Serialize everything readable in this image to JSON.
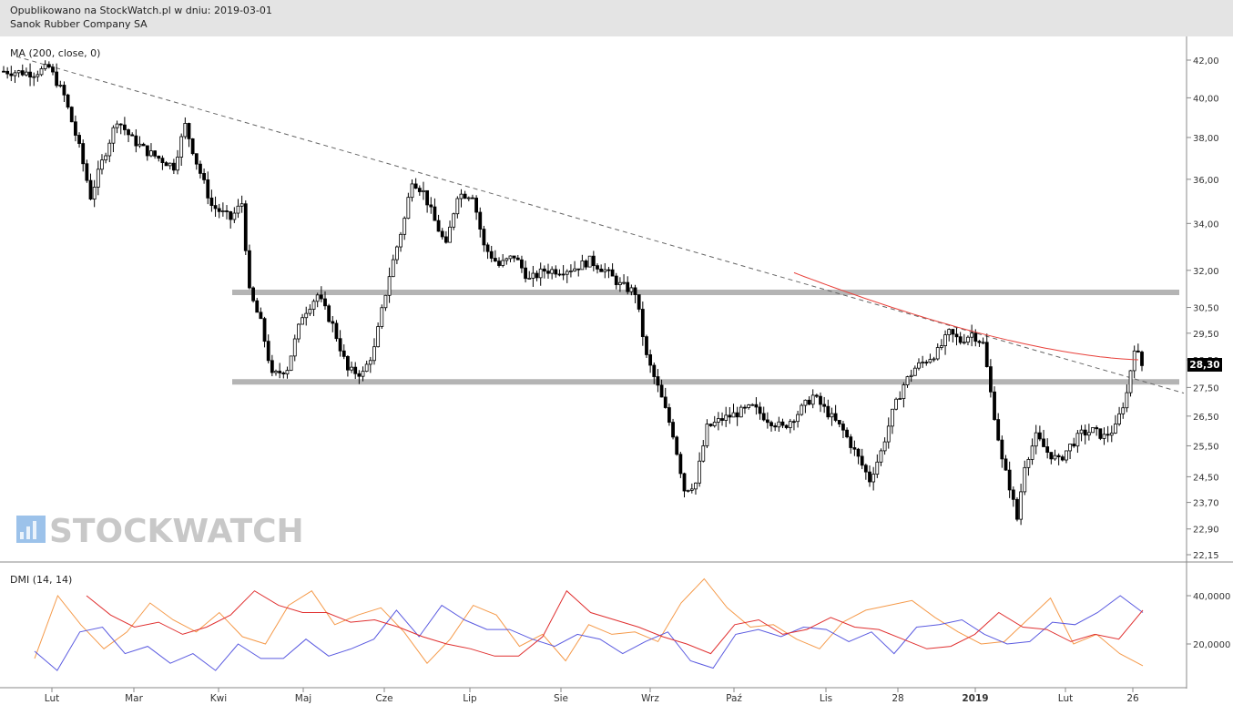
{
  "header": {
    "line1": "Opublikowano na StockWatch.pl w dniu: 2019-03-01",
    "line2": "Sanok Rubber Company SA"
  },
  "watermark": "STOCKWATCH",
  "colors": {
    "candle": "#000000",
    "ma": "#e8403a",
    "support": "#b4b4b4",
    "trend": "#666666",
    "plus_di": "#f59a4a",
    "minus_di": "#5a5ae0",
    "adx": "#e03030",
    "price_tag_bg": "#000000"
  },
  "chart_data": [
    {
      "type": "candlestick",
      "title": "",
      "indicator_label": "MA (200, close, 0)",
      "scale": "log",
      "ylim": [
        21.8,
        43.2
      ],
      "y_ticks": [
        "42,00",
        "40,00",
        "38,00",
        "36,00",
        "34,00",
        "32,00",
        "30,50",
        "29,50",
        "28,50",
        "27,50",
        "26,50",
        "25,50",
        "24,50",
        "23,70",
        "22,90",
        "22,15"
      ],
      "y_tick_values": [
        42.0,
        40.0,
        38.0,
        36.0,
        34.0,
        32.0,
        30.5,
        29.5,
        28.5,
        27.5,
        26.5,
        25.5,
        24.5,
        23.7,
        22.9,
        22.15
      ],
      "last_price_label": "28,30",
      "last_price": 28.3,
      "x_labels": [
        "Lut",
        "Mar",
        "Kwi",
        "Maj",
        "Cze",
        "Lip",
        "Sie",
        "Wrz",
        "Paź",
        "Lis",
        "28",
        "2019",
        "Lut",
        "26"
      ],
      "price_path": [
        [
          0,
          41.4
        ],
        [
          8,
          41.3
        ],
        [
          12,
          41.6
        ],
        [
          16,
          40.1
        ],
        [
          20,
          37.5
        ],
        [
          23,
          35.2
        ],
        [
          26,
          36.8
        ],
        [
          30,
          38.9
        ],
        [
          34,
          37.9
        ],
        [
          38,
          37.3
        ],
        [
          42,
          36.9
        ],
        [
          45,
          36.6
        ],
        [
          48,
          38.6
        ],
        [
          51,
          36.8
        ],
        [
          55,
          34.8
        ],
        [
          60,
          34.2
        ],
        [
          63,
          34.9
        ],
        [
          65,
          31.1
        ],
        [
          68,
          29.9
        ],
        [
          71,
          27.9
        ],
        [
          75,
          28.2
        ],
        [
          79,
          30.2
        ],
        [
          83,
          31.0
        ],
        [
          87,
          29.8
        ],
        [
          91,
          28.1
        ],
        [
          95,
          28.0
        ],
        [
          98,
          28.9
        ],
        [
          102,
          31.8
        ],
        [
          106,
          34.2
        ],
        [
          108,
          36.0
        ],
        [
          111,
          35.4
        ],
        [
          114,
          34.1
        ],
        [
          117,
          33.0
        ],
        [
          120,
          35.3
        ],
        [
          124,
          35.3
        ],
        [
          127,
          33.0
        ],
        [
          131,
          32.2
        ],
        [
          135,
          32.6
        ],
        [
          139,
          31.6
        ],
        [
          143,
          32.0
        ],
        [
          147,
          32.0
        ],
        [
          151,
          32.1
        ],
        [
          155,
          32.4
        ],
        [
          159,
          32.0
        ],
        [
          163,
          31.4
        ],
        [
          167,
          31.1
        ],
        [
          170,
          28.6
        ],
        [
          173,
          27.5
        ],
        [
          177,
          25.9
        ],
        [
          180,
          24.1
        ],
        [
          183,
          24.3
        ],
        [
          186,
          26.1
        ],
        [
          190,
          26.4
        ],
        [
          194,
          26.6
        ],
        [
          198,
          26.8
        ],
        [
          202,
          26.4
        ],
        [
          206,
          26.1
        ],
        [
          210,
          26.6
        ],
        [
          214,
          27.2
        ],
        [
          218,
          26.6
        ],
        [
          222,
          26.0
        ],
        [
          226,
          25.1
        ],
        [
          229,
          24.4
        ],
        [
          232,
          25.3
        ],
        [
          235,
          26.6
        ],
        [
          238,
          27.6
        ],
        [
          241,
          28.2
        ],
        [
          244,
          28.5
        ],
        [
          247,
          28.8
        ],
        [
          250,
          29.5
        ],
        [
          253,
          29.2
        ],
        [
          256,
          29.5
        ],
        [
          259,
          29.1
        ],
        [
          261,
          27.3
        ],
        [
          264,
          25.0
        ],
        [
          266,
          24.2
        ],
        [
          268,
          23.2
        ],
        [
          270,
          24.9
        ],
        [
          273,
          25.8
        ],
        [
          276,
          25.3
        ],
        [
          279,
          25.0
        ],
        [
          282,
          25.5
        ],
        [
          285,
          25.9
        ],
        [
          288,
          26.0
        ],
        [
          291,
          25.8
        ],
        [
          294,
          26.1
        ],
        [
          297,
          27.3
        ],
        [
          299,
          29.0
        ],
        [
          301,
          28.3
        ]
      ],
      "support_levels": [
        31.1,
        27.7
      ],
      "trendline": [
        [
          42.2,
          27.3
        ]
      ],
      "ma_200": [
        [
          29.6,
          28.3
        ]
      ]
    },
    {
      "type": "line",
      "indicator_label": "DMI (14, 14)",
      "y_ticks": [
        "40,0000",
        "20,0000"
      ],
      "y_tick_values": [
        40,
        20
      ],
      "ylim": [
        5,
        50
      ],
      "series": [
        {
          "color": "#f59a4a",
          "values": [
            14,
            40,
            28,
            18,
            25,
            37,
            30,
            25,
            33,
            23,
            20,
            36,
            42,
            28,
            32,
            35,
            25,
            12,
            22,
            36,
            32,
            19,
            24,
            13,
            28,
            24,
            25,
            21,
            37,
            47,
            35,
            27,
            28,
            22,
            18,
            29,
            34,
            36,
            38,
            31,
            25,
            20,
            21,
            30,
            39,
            20,
            24,
            16,
            11
          ]
        },
        {
          "color": "#5a5ae0",
          "values": [
            17,
            9,
            25,
            27,
            16,
            19,
            12,
            16,
            9,
            20,
            14,
            14,
            22,
            15,
            18,
            22,
            34,
            23,
            36,
            30,
            26,
            26,
            22,
            19,
            24,
            22,
            16,
            21,
            25,
            13,
            10,
            24,
            26,
            23,
            27,
            26,
            21,
            25,
            16,
            27,
            28,
            30,
            24,
            20,
            21,
            29,
            28,
            33,
            40,
            33
          ]
        },
        {
          "color": "#e03030",
          "values": [
            40,
            32,
            27,
            29,
            24,
            27,
            32,
            42,
            36,
            33,
            33,
            29,
            30,
            27,
            23,
            20,
            18,
            15,
            15,
            23,
            42,
            33,
            30,
            27,
            23,
            20,
            16,
            28,
            30,
            24,
            26,
            31,
            27,
            26,
            22,
            18,
            19,
            24,
            33,
            27,
            26,
            21,
            24,
            22,
            34
          ]
        }
      ]
    }
  ]
}
